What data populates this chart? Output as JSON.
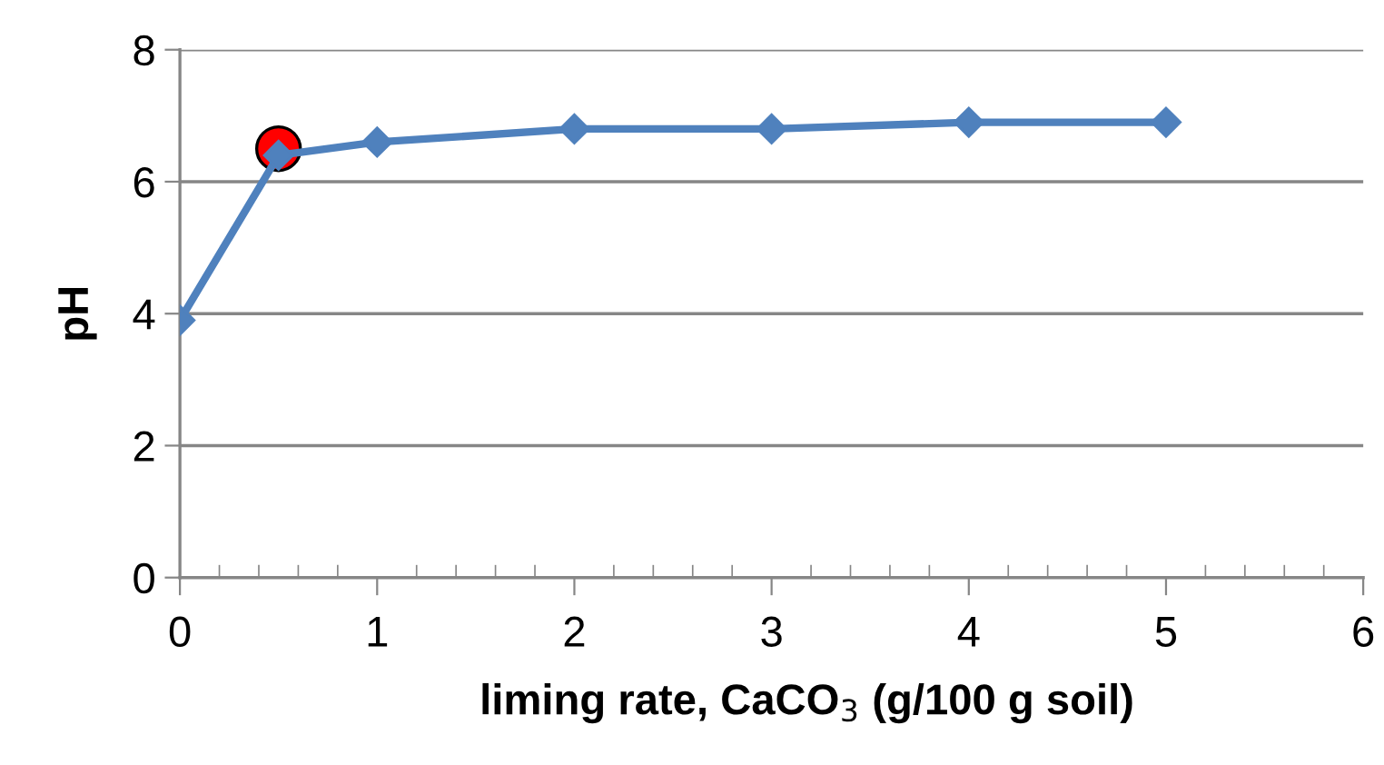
{
  "chart_data": {
    "type": "line",
    "xlabel": "liming rate, CaCO$_{3}$ (g/100 g soil)",
    "ylabel": "pH",
    "series": [
      {
        "x": [
          0,
          0.5,
          1,
          2,
          3,
          4,
          5
        ],
        "values": [
          3.9,
          6.4,
          6.6,
          6.8,
          6.8,
          6.9,
          6.9
        ],
        "color": "#4f81bd",
        "marker": "diamond"
      },
      {
        "type": "scatter",
        "x": [
          0.5
        ],
        "values": [
          6.5
        ],
        "color": "#ff0000",
        "marker": "circle"
      }
    ],
    "xlim": [
      0,
      6
    ],
    "ylim": [
      0,
      8
    ],
    "xticks": [
      0,
      {
        "value": 0.2,
        "label": null
      },
      {
        "value": 0.4,
        "label": null
      },
      {
        "value": 0.6,
        "label": null
      },
      {
        "value": 0.8,
        "label": null
      },
      1,
      {
        "value": 1.2,
        "label": null
      },
      {
        "value": 1.4,
        "label": null
      },
      {
        "value": 1.6,
        "label": null
      },
      {
        "value": 1.8,
        "label": null
      },
      2,
      {
        "value": 2.2,
        "label": null
      },
      {
        "value": 2.4,
        "label": null
      },
      {
        "value": 2.6,
        "label": null
      },
      {
        "value": 2.8,
        "label": null
      },
      3,
      {
        "value": 3.2,
        "label": null
      },
      {
        "value": 3.4,
        "label": null
      },
      {
        "value": 3.6,
        "label": null
      },
      {
        "value": 3.8,
        "label": null
      },
      4,
      {
        "value": 4.2,
        "label": null
      },
      {
        "value": 4.4,
        "label": null
      },
      {
        "value": 4.6,
        "label": null
      },
      {
        "value": 4.8,
        "label": null
      },
      5,
      {
        "value": 5.2,
        "label": null
      },
      {
        "value": 5.4,
        "label": null
      },
      {
        "value": 5.6,
        "label": null
      },
      {
        "value": 5.8,
        "label": null
      },
      6
    ],
    "yticks": [
      0,
      2,
      4,
      6,
      8
    ],
    "grid": "y",
    "line_style": "solid"
  }
}
